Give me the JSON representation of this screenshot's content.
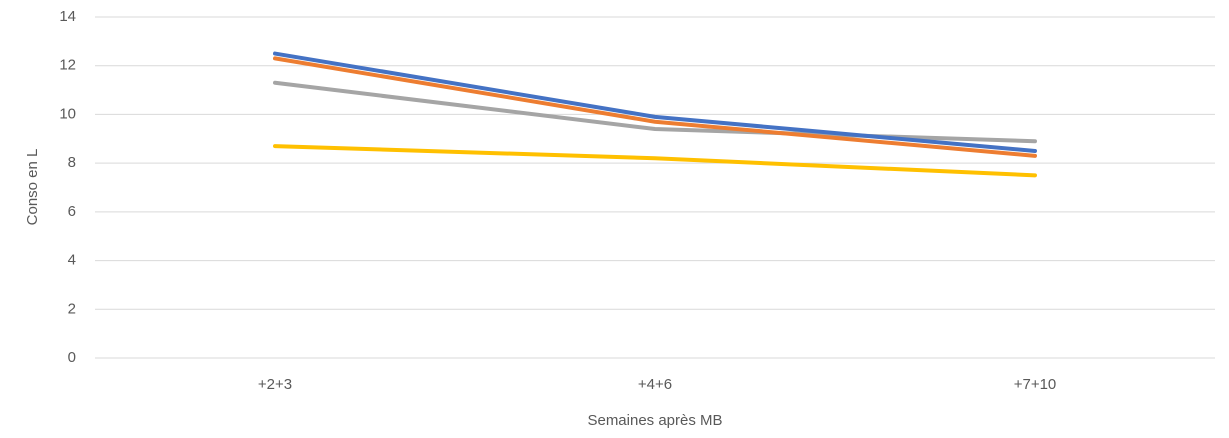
{
  "chart_data": {
    "type": "line",
    "x_label": "Semaines après MB",
    "y_label": "Conso en L",
    "categories": [
      "+2+3",
      "+4+6",
      "+7+10"
    ],
    "series": [
      {
        "color": "#4472c4",
        "values": [
          12.5,
          9.9,
          8.5
        ]
      },
      {
        "color": "#ed7d31",
        "values": [
          12.3,
          9.7,
          8.3
        ]
      },
      {
        "color": "#a5a5a5",
        "values": [
          11.3,
          9.4,
          8.9
        ]
      },
      {
        "color": "#ffc000",
        "values": [
          8.7,
          8.2,
          7.5
        ]
      }
    ],
    "ylim": [
      0,
      14
    ],
    "yticks": [
      0,
      2,
      4,
      6,
      8,
      10,
      12,
      14
    ],
    "grid": true
  }
}
